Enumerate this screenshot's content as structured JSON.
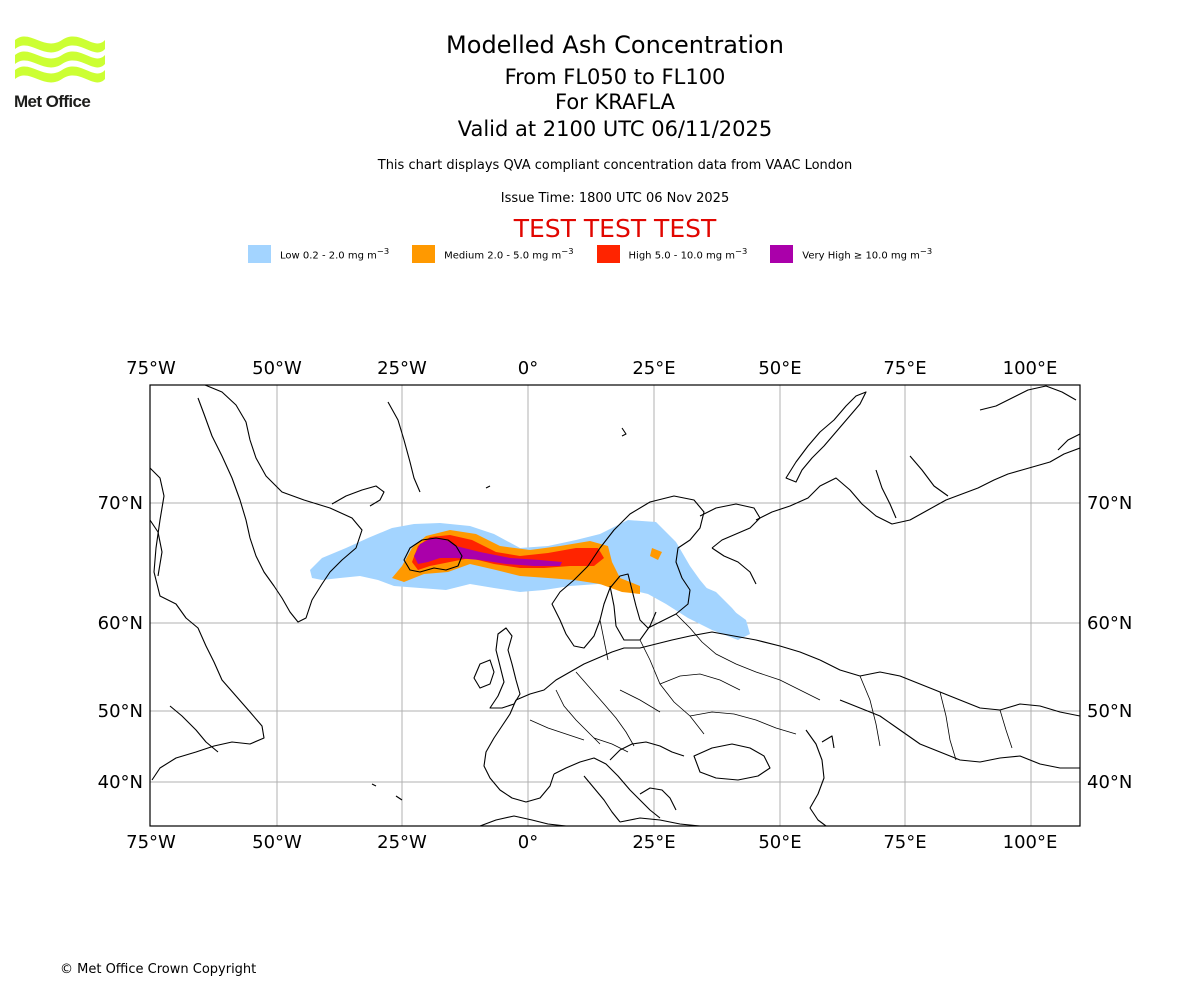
{
  "logo": {
    "name": "Met Office",
    "icon": "met-office-wave-logo",
    "color": "#ccff33"
  },
  "header": {
    "title": "Modelled Ash Concentration",
    "flight_levels": "From FL050 to FL100",
    "volcano": "For KRAFLA",
    "valid_time": "Valid at 2100 UTC 06/11/2025",
    "note": "This chart displays QVA compliant concentration data from VAAC London",
    "issue_time": "Issue Time: 1800 UTC 06 Nov 2025",
    "test_banner": "TEST TEST TEST"
  },
  "legend": [
    {
      "label": "Low 0.2 - 2.0 mg m",
      "exp": "−3",
      "color": "#a3d4ff"
    },
    {
      "label": "Medium 2.0 - 5.0 mg m",
      "exp": "−3",
      "color": "#ff9900"
    },
    {
      "label": "High 5.0 - 10.0 mg m",
      "exp": "−3",
      "color": "#ff2400"
    },
    {
      "label": "Very High ≥ 10.0 mg m",
      "exp": "−3",
      "color": "#aa00aa"
    }
  ],
  "map": {
    "lon_ticks": [
      "75°W",
      "50°W",
      "25°W",
      "0°",
      "25°E",
      "50°E",
      "75°E",
      "100°E"
    ],
    "lat_ticks": [
      "70°N",
      "60°N",
      "50°N",
      "40°N"
    ],
    "grid": true,
    "coastline_color": "#000000",
    "gridline_color": "#b0b0b0"
  },
  "footer": {
    "copyright": "© Met Office Crown Copyright"
  }
}
